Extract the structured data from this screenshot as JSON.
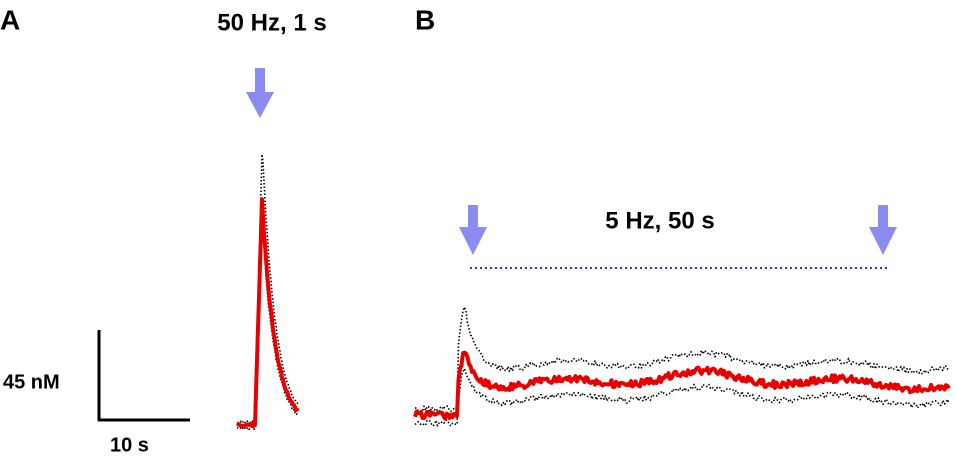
{
  "panels": [
    {
      "label": "A",
      "stimulus": "50 Hz, 1 s"
    },
    {
      "label": "B",
      "stimulus": "5 Hz, 50 s"
    }
  ],
  "scale_bar": {
    "vertical": "45 nM",
    "horizontal": "10 s"
  }
}
